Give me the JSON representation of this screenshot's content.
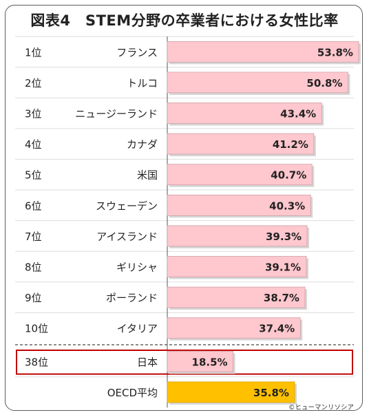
{
  "title": "図表4　STEM分野の卒業者における女性比率",
  "credit": "©ヒューマンリソシア",
  "colors": {
    "bar": "#ffc7ce",
    "bar_border": "#c9a0a5",
    "oecd_bar": "#ffc000",
    "highlight_border": "#c00000",
    "divider": "#444444",
    "gridline": "#dddddd"
  },
  "chart_data": {
    "type": "bar",
    "orientation": "horizontal",
    "xlim": [
      0,
      60
    ],
    "rows": [
      {
        "rank": "1位",
        "country": "フランス",
        "value": 53.8,
        "label": "53.8%"
      },
      {
        "rank": "2位",
        "country": "トルコ",
        "value": 50.8,
        "label": "50.8%"
      },
      {
        "rank": "3位",
        "country": "ニュージーランド",
        "value": 43.4,
        "label": "43.4%"
      },
      {
        "rank": "4位",
        "country": "カナダ",
        "value": 41.2,
        "label": "41.2%"
      },
      {
        "rank": "5位",
        "country": "米国",
        "value": 40.7,
        "label": "40.7%"
      },
      {
        "rank": "6位",
        "country": "スウェーデン",
        "value": 40.3,
        "label": "40.3%"
      },
      {
        "rank": "7位",
        "country": "アイスランド",
        "value": 39.3,
        "label": "39.3%"
      },
      {
        "rank": "8位",
        "country": "ギリシャ",
        "value": 39.1,
        "label": "39.1%"
      },
      {
        "rank": "9位",
        "country": "ポーランド",
        "value": 38.7,
        "label": "38.7%"
      },
      {
        "rank": "10位",
        "country": "イタリア",
        "value": 37.4,
        "label": "37.4%"
      },
      {
        "rank": "38位",
        "country": "日本",
        "value": 18.5,
        "label": "18.5%",
        "highlight": true
      },
      {
        "rank": "",
        "country": "OECD平均",
        "value": 35.8,
        "label": "35.8%",
        "average": true
      }
    ]
  }
}
